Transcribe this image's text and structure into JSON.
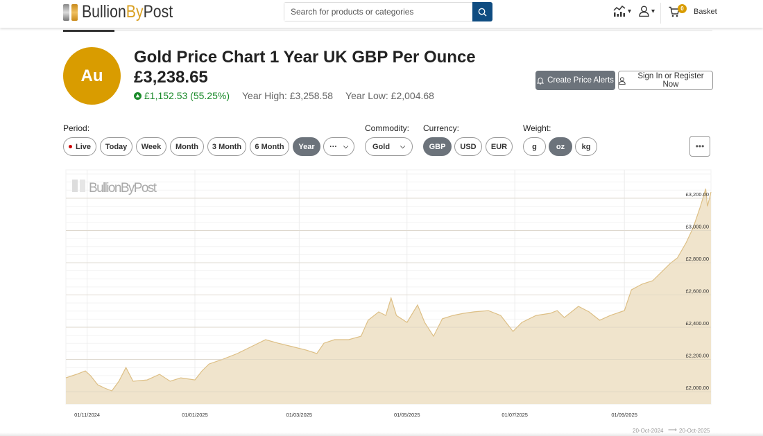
{
  "header": {
    "logo": {
      "text_main": "Bullion",
      "text_by": "By",
      "text_post": "Post"
    },
    "search": {
      "placeholder": "Search for products or categories"
    },
    "icons": [
      "search-icon",
      "chart-icon",
      "user-icon",
      "cart-icon"
    ],
    "basket": {
      "count": "0",
      "label": "Basket"
    }
  },
  "product": {
    "symbol": "Au",
    "title": "Gold Price Chart 1 Year UK GBP Per Ounce",
    "price": "£3,238.65",
    "change": "£1,152.53 (55.25%)",
    "year_high": "Year High: £3,258.58",
    "year_low": "Year Low: £2,004.68",
    "create_alerts": "Create Price Alerts",
    "sign_in": "Sign In or Register Now"
  },
  "controls": {
    "period_label": "Period:",
    "periods": [
      {
        "label": "Live"
      },
      {
        "label": "Today"
      },
      {
        "label": "Week"
      },
      {
        "label": "Month"
      },
      {
        "label": "3 Month"
      },
      {
        "label": "6 Month"
      },
      {
        "label": "Year",
        "selected": true
      },
      {
        "label": "···"
      }
    ],
    "commodity_label": "Commodity:",
    "commodity": "Gold",
    "currency_label": "Currency:",
    "currencies": [
      {
        "label": "GBP",
        "selected": true
      },
      {
        "label": "USD"
      },
      {
        "label": "EUR"
      }
    ],
    "weight_label": "Weight:",
    "weights": [
      {
        "label": "g"
      },
      {
        "label": "oz",
        "selected": true
      },
      {
        "label": "kg"
      }
    ],
    "more": "•••"
  },
  "colors": {
    "gold": "#d99c00",
    "accent": "#0f4c81",
    "up": "#1a8a2a",
    "fill": "#f0e4cc",
    "line": "#ddbf85",
    "selected": "#6c737b"
  },
  "chart_data": {
    "type": "area",
    "watermark": "BullionByPost",
    "xlim": [
      "2024-10-20",
      "2025-10-20"
    ],
    "ylim": [
      1923,
      3376
    ],
    "x_ticks": [
      {
        "date": "2024-11-01",
        "label": "01/11/2024"
      },
      {
        "date": "2025-01-01",
        "label": "01/01/2025"
      },
      {
        "date": "2025-03-01",
        "label": "01/03/2025"
      },
      {
        "date": "2025-05-01",
        "label": "01/05/2025"
      },
      {
        "date": "2025-07-01",
        "label": "01/07/2025"
      },
      {
        "date": "2025-09-01",
        "label": "01/09/2025"
      }
    ],
    "y_ticks": [
      {
        "value": 2000,
        "label": "£2,000.00"
      },
      {
        "value": 2200,
        "label": "£2,200.00"
      },
      {
        "value": 2400,
        "label": "£2,400.00"
      },
      {
        "value": 2600,
        "label": "£2,600.00"
      },
      {
        "value": 2800,
        "label": "£2,800.00"
      },
      {
        "value": 3000,
        "label": "£3,000.00"
      },
      {
        "value": 3200,
        "label": "£3,200.00"
      }
    ],
    "grid": true,
    "range_from": "20-Oct-2024",
    "range_to": "20-Oct-2025",
    "points": [
      [
        "2024-10-20",
        2086
      ],
      [
        "2024-10-26",
        2108
      ],
      [
        "2024-10-31",
        2129
      ],
      [
        "2024-11-03",
        2099
      ],
      [
        "2024-11-07",
        2043
      ],
      [
        "2024-11-11",
        2022
      ],
      [
        "2024-11-15",
        2005
      ],
      [
        "2024-11-19",
        2065
      ],
      [
        "2024-11-23",
        2150
      ],
      [
        "2024-11-27",
        2065
      ],
      [
        "2024-12-05",
        2073
      ],
      [
        "2024-12-12",
        2108
      ],
      [
        "2024-12-18",
        2065
      ],
      [
        "2024-12-24",
        2086
      ],
      [
        "2025-01-01",
        2073
      ],
      [
        "2025-01-05",
        2129
      ],
      [
        "2025-01-09",
        2172
      ],
      [
        "2025-01-17",
        2202
      ],
      [
        "2025-01-25",
        2237
      ],
      [
        "2025-02-02",
        2280
      ],
      [
        "2025-02-10",
        2323
      ],
      [
        "2025-02-17",
        2301
      ],
      [
        "2025-02-25",
        2280
      ],
      [
        "2025-03-05",
        2258
      ],
      [
        "2025-03-11",
        2237
      ],
      [
        "2025-03-15",
        2301
      ],
      [
        "2025-03-21",
        2323
      ],
      [
        "2025-03-29",
        2323
      ],
      [
        "2025-04-05",
        2344
      ],
      [
        "2025-04-09",
        2443
      ],
      [
        "2025-04-15",
        2495
      ],
      [
        "2025-04-19",
        2473
      ],
      [
        "2025-04-22",
        2581
      ],
      [
        "2025-04-25",
        2473
      ],
      [
        "2025-05-01",
        2430
      ],
      [
        "2025-05-07",
        2538
      ],
      [
        "2025-05-11",
        2430
      ],
      [
        "2025-05-16",
        2344
      ],
      [
        "2025-05-21",
        2452
      ],
      [
        "2025-05-27",
        2473
      ],
      [
        "2025-06-02",
        2486
      ],
      [
        "2025-06-08",
        2495
      ],
      [
        "2025-06-16",
        2503
      ],
      [
        "2025-06-23",
        2473
      ],
      [
        "2025-06-30",
        2374
      ],
      [
        "2025-07-05",
        2430
      ],
      [
        "2025-07-13",
        2473
      ],
      [
        "2025-07-21",
        2486
      ],
      [
        "2025-07-25",
        2503
      ],
      [
        "2025-07-29",
        2460
      ],
      [
        "2025-08-06",
        2529
      ],
      [
        "2025-08-12",
        2495
      ],
      [
        "2025-08-18",
        2443
      ],
      [
        "2025-08-24",
        2473
      ],
      [
        "2025-09-01",
        2503
      ],
      [
        "2025-09-05",
        2632
      ],
      [
        "2025-09-11",
        2667
      ],
      [
        "2025-09-17",
        2688
      ],
      [
        "2025-09-23",
        2753
      ],
      [
        "2025-09-27",
        2796
      ],
      [
        "2025-10-01",
        2830
      ],
      [
        "2025-10-06",
        2925
      ],
      [
        "2025-10-10",
        3019
      ],
      [
        "2025-10-14",
        3148
      ],
      [
        "2025-10-17",
        3258.58
      ],
      [
        "2025-10-18",
        3150
      ],
      [
        "2025-10-20",
        3238.65
      ]
    ]
  }
}
